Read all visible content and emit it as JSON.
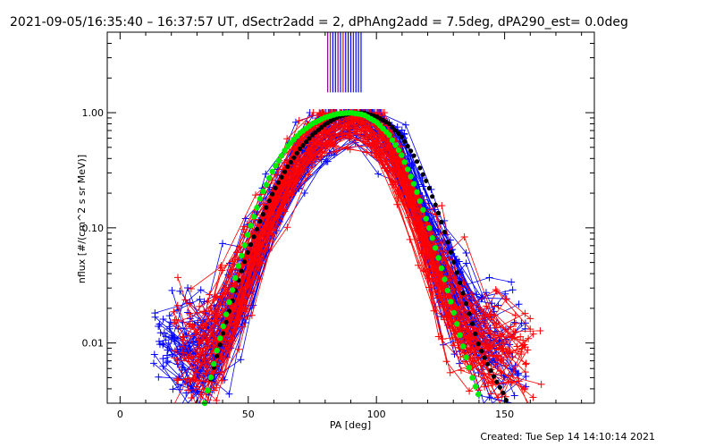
{
  "header": {
    "title": "2021-09-05/16:35:40 – 16:37:57 UT, dSectr2add = 2, dPhAng2add = 7.5deg, dPA290_est=  0.0deg"
  },
  "footer": {
    "created": "Created: Tue Sep 14 14:10:14 2021"
  },
  "chart_data": {
    "type": "line",
    "title": "2021-09-05/16:35:40 – 16:37:57 UT, dSectr2add = 2, dPhAng2add = 7.5deg, dPA290_est=  0.0deg",
    "xlabel": "PA [deg]",
    "ylabel": "nflux [#/(cm^2 s sr MeV)]",
    "xlim": [
      -5,
      185
    ],
    "ylim": [
      0.003,
      5
    ],
    "yscale": "log",
    "x_ticks": [
      0,
      50,
      100,
      150
    ],
    "x_tick_labels": [
      "0",
      "50",
      "100",
      "150"
    ],
    "y_ticks": [
      0.01,
      0.1,
      1
    ],
    "y_tick_labels": [
      "0.01",
      "0.10",
      "1.00"
    ],
    "grid": false,
    "colors": {
      "blue": "#0000ff",
      "red": "#ff0000",
      "green": "#00ee00",
      "black": "#000000",
      "purple": "#7f007f"
    },
    "series": [
      {
        "color": "blue",
        "marker": "plus",
        "count_approx": 70,
        "ref_curve": {
          "x": [
            13,
            20,
            25,
            30,
            35,
            40,
            45,
            50,
            55,
            60,
            65,
            70,
            75,
            80,
            85,
            90,
            95,
            100,
            105,
            110,
            115,
            120,
            125,
            130,
            135,
            140,
            145,
            150,
            155,
            160
          ],
          "y": [
            0.011,
            0.008,
            0.007,
            0.006,
            0.007,
            0.011,
            0.02,
            0.042,
            0.085,
            0.15,
            0.25,
            0.38,
            0.52,
            0.68,
            0.82,
            0.93,
            0.96,
            0.82,
            0.6,
            0.38,
            0.2,
            0.09,
            0.045,
            0.025,
            0.015,
            0.011,
            0.009,
            0.009,
            0.009,
            0.01
          ]
        }
      },
      {
        "color": "red",
        "marker": "plus",
        "count_approx": 60,
        "ref_curve": {
          "x": [
            20,
            25,
            30,
            35,
            40,
            45,
            50,
            55,
            60,
            65,
            70,
            75,
            80,
            85,
            90,
            95,
            100,
            105,
            110,
            115,
            120,
            125,
            130,
            135,
            140,
            145,
            150,
            155,
            160,
            165
          ],
          "y": [
            0.01,
            0.009,
            0.008,
            0.009,
            0.014,
            0.024,
            0.045,
            0.09,
            0.16,
            0.27,
            0.42,
            0.58,
            0.74,
            0.86,
            0.95,
            0.9,
            0.72,
            0.48,
            0.27,
            0.13,
            0.06,
            0.03,
            0.016,
            0.012,
            0.01,
            0.009,
            0.008,
            0.008,
            0.008,
            0.009
          ]
        }
      },
      {
        "color": "black",
        "marker": "dot",
        "x": [
          33,
          35,
          38,
          42,
          46,
          50,
          55,
          60,
          65,
          70,
          75,
          80,
          85,
          90,
          95,
          100,
          105,
          110,
          115,
          120,
          125,
          130,
          135,
          140,
          145,
          150,
          151
        ],
        "y": [
          0.003,
          0.0045,
          0.008,
          0.017,
          0.034,
          0.063,
          0.12,
          0.21,
          0.33,
          0.48,
          0.64,
          0.79,
          0.92,
          0.99,
          1.0,
          0.93,
          0.8,
          0.61,
          0.41,
          0.24,
          0.12,
          0.052,
          0.022,
          0.0095,
          0.0055,
          0.0035,
          0.003
        ]
      },
      {
        "color": "green",
        "marker": "dot",
        "x": [
          33,
          35,
          38,
          42,
          46,
          50,
          55,
          60,
          65,
          70,
          75,
          80,
          85,
          90,
          95,
          100,
          105,
          110,
          115,
          120,
          125,
          130,
          135,
          138,
          140
        ],
        "y": [
          0.003,
          0.0046,
          0.009,
          0.02,
          0.045,
          0.09,
          0.19,
          0.33,
          0.5,
          0.66,
          0.8,
          0.91,
          0.98,
          1.0,
          0.96,
          0.83,
          0.64,
          0.42,
          0.23,
          0.11,
          0.048,
          0.019,
          0.0075,
          0.0045,
          0.0035
        ]
      },
      {
        "color": "purple",
        "marker": "vline",
        "x": [
          81,
          82,
          83,
          84,
          85,
          86,
          87,
          88,
          89,
          90,
          91,
          92,
          93,
          94
        ],
        "y_range": [
          1.5,
          5
        ]
      }
    ]
  }
}
